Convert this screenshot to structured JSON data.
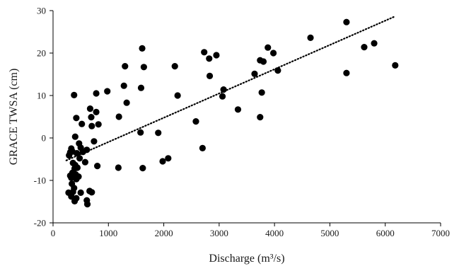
{
  "chart_data": {
    "type": "scatter",
    "xlabel": "Discharge (m³/s)",
    "ylabel": "GRACE TWSA (cm)",
    "xlim": [
      0,
      7000
    ],
    "ylim": [
      -20,
      30
    ],
    "x_ticks": [
      0,
      1000,
      2000,
      3000,
      4000,
      5000,
      6000,
      7000
    ],
    "y_ticks": [
      -20,
      -10,
      0,
      10,
      20,
      30
    ],
    "x_tick_labels": [
      "0",
      "1000",
      "2000",
      "3000",
      "4000",
      "5000",
      "6000",
      "7000"
    ],
    "y_tick_labels": [
      "-20",
      "-10",
      "0",
      "10",
      "20",
      "30"
    ],
    "grid": false,
    "legend": false,
    "colors": {
      "points": "#000000",
      "trendline": "#000000",
      "axes": "#000000"
    },
    "series": [
      {
        "values": [
          [
            5300,
            27.3
          ],
          [
            4650,
            23.6
          ],
          [
            5800,
            22.3
          ],
          [
            5620,
            21.4
          ],
          [
            6180,
            17.1
          ],
          [
            5300,
            15.3
          ],
          [
            3880,
            21.3
          ],
          [
            3980,
            20.0
          ],
          [
            3740,
            18.3
          ],
          [
            3800,
            18.0
          ],
          [
            3640,
            15.1
          ],
          [
            4060,
            15.9
          ],
          [
            3770,
            10.7
          ],
          [
            3740,
            4.9
          ],
          [
            3080,
            11.4
          ],
          [
            3060,
            9.8
          ],
          [
            3340,
            6.7
          ],
          [
            2730,
            20.2
          ],
          [
            2950,
            19.5
          ],
          [
            2820,
            18.7
          ],
          [
            2830,
            14.6
          ],
          [
            2580,
            3.9
          ],
          [
            2700,
            -2.4
          ],
          [
            2200,
            16.9
          ],
          [
            2250,
            10.0
          ],
          [
            2080,
            -4.8
          ],
          [
            1980,
            -5.5
          ],
          [
            1900,
            1.2
          ],
          [
            1610,
            21.1
          ],
          [
            1640,
            16.7
          ],
          [
            1590,
            11.8
          ],
          [
            1580,
            1.3
          ],
          [
            1620,
            -7.1
          ],
          [
            1300,
            16.9
          ],
          [
            1280,
            12.3
          ],
          [
            1330,
            8.3
          ],
          [
            1190,
            5.0
          ],
          [
            1180,
            -7.0
          ],
          [
            980,
            11.0
          ],
          [
            780,
            10.5
          ],
          [
            780,
            6.1
          ],
          [
            670,
            6.9
          ],
          [
            690,
            4.9
          ],
          [
            820,
            3.2
          ],
          [
            700,
            2.8
          ],
          [
            740,
            -0.8
          ],
          [
            800,
            -6.6
          ],
          [
            520,
            3.3
          ],
          [
            610,
            -2.8
          ],
          [
            580,
            -5.7
          ],
          [
            380,
            10.1
          ],
          [
            420,
            4.7
          ],
          [
            400,
            0.3
          ],
          [
            470,
            -1.3
          ],
          [
            500,
            -2.3
          ],
          [
            540,
            -3.3
          ],
          [
            330,
            -2.5
          ],
          [
            310,
            -3.4
          ],
          [
            290,
            -4.1
          ],
          [
            350,
            -3.2
          ],
          [
            430,
            -3.6
          ],
          [
            480,
            -4.8
          ],
          [
            360,
            -5.9
          ],
          [
            400,
            -6.4
          ],
          [
            390,
            -7.2
          ],
          [
            440,
            -7.0
          ],
          [
            350,
            -8.2
          ],
          [
            410,
            -8.6
          ],
          [
            310,
            -8.9
          ],
          [
            330,
            -9.4
          ],
          [
            420,
            -9.7
          ],
          [
            460,
            -9.1
          ],
          [
            340,
            -10.8
          ],
          [
            380,
            -11.8
          ],
          [
            280,
            -12.9
          ],
          [
            360,
            -12.7
          ],
          [
            500,
            -12.9
          ],
          [
            660,
            -12.5
          ],
          [
            700,
            -12.8
          ],
          [
            330,
            -13.8
          ],
          [
            420,
            -14.2
          ],
          [
            390,
            -14.9
          ],
          [
            610,
            -14.7
          ],
          [
            620,
            -15.6
          ]
        ]
      }
    ],
    "trendline": {
      "style": "dotted",
      "from": [
        240,
        -5.3
      ],
      "to": [
        6170,
        28.6
      ]
    }
  }
}
